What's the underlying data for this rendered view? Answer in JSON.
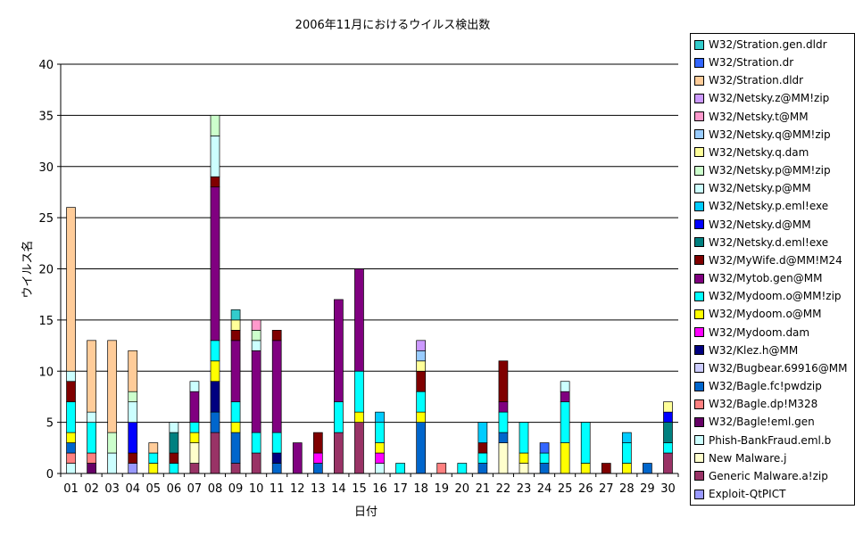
{
  "chart_data": {
    "type": "bar",
    "stacked": true,
    "title": "2006年11月におけるウイルス検出数",
    "xlabel": "日付",
    "ylabel": "ウイルス名",
    "ylim": [
      0,
      40
    ],
    "yticks": [
      0,
      5,
      10,
      15,
      20,
      25,
      30,
      35,
      40
    ],
    "grid": true,
    "legend_position": "right",
    "categories": [
      "01",
      "02",
      "03",
      "04",
      "05",
      "06",
      "07",
      "08",
      "09",
      "10",
      "11",
      "12",
      "13",
      "14",
      "15",
      "16",
      "17",
      "18",
      "19",
      "20",
      "21",
      "22",
      "23",
      "24",
      "25",
      "26",
      "27",
      "28",
      "29",
      "30"
    ],
    "series": [
      {
        "name": "Exploit-QtPICT",
        "color": "#9999ff",
        "values": [
          0,
          0,
          0,
          1,
          0,
          0,
          0,
          0,
          0,
          0,
          0,
          0,
          0,
          0,
          0,
          0,
          0,
          0,
          0,
          0,
          0,
          0,
          0,
          0,
          0,
          0,
          0,
          0,
          0,
          0
        ]
      },
      {
        "name": "Generic Malware.a!zip",
        "color": "#993366",
        "values": [
          0,
          0,
          0,
          0,
          0,
          0,
          1,
          4,
          1,
          2,
          0,
          0,
          0,
          4,
          5,
          0,
          0,
          0,
          0,
          0,
          0,
          0,
          0,
          0,
          0,
          0,
          0,
          0,
          0,
          2
        ]
      },
      {
        "name": "New Malware.j",
        "color": "#ffffcc",
        "values": [
          0,
          0,
          0,
          0,
          0,
          0,
          2,
          0,
          0,
          0,
          0,
          0,
          0,
          0,
          0,
          0,
          0,
          0,
          0,
          0,
          0,
          3,
          1,
          0,
          0,
          0,
          0,
          0,
          0,
          0
        ]
      },
      {
        "name": "Phish-BankFraud.eml.b",
        "color": "#ccffff",
        "values": [
          1,
          0,
          2,
          0,
          0,
          0,
          0,
          0,
          0,
          0,
          0,
          0,
          0,
          0,
          0,
          1,
          0,
          0,
          0,
          0,
          0,
          0,
          0,
          0,
          0,
          0,
          0,
          0,
          0,
          0
        ]
      },
      {
        "name": "W32/Bagle!eml.gen",
        "color": "#660066",
        "values": [
          0,
          1,
          0,
          0,
          0,
          0,
          0,
          0,
          0,
          0,
          0,
          0,
          0,
          0,
          0,
          0,
          0,
          0,
          0,
          0,
          0,
          0,
          0,
          0,
          0,
          0,
          0,
          0,
          0,
          0
        ]
      },
      {
        "name": "W32/Bagle.dp!M328",
        "color": "#ff8080",
        "values": [
          1,
          1,
          0,
          0,
          0,
          0,
          0,
          0,
          0,
          0,
          0,
          0,
          0,
          0,
          0,
          0,
          0,
          0,
          1,
          0,
          0,
          0,
          0,
          0,
          0,
          0,
          0,
          0,
          0,
          0
        ]
      },
      {
        "name": "W32/Bagle.fc!pwdzip",
        "color": "#0066cc",
        "values": [
          1,
          0,
          0,
          0,
          0,
          0,
          0,
          2,
          3,
          0,
          1,
          0,
          1,
          0,
          0,
          0,
          0,
          5,
          0,
          0,
          1,
          1,
          0,
          1,
          0,
          0,
          0,
          0,
          1,
          0
        ]
      },
      {
        "name": "W32/Bugbear.69916@MM",
        "color": "#ccccff",
        "values": [
          0,
          0,
          0,
          0,
          0,
          0,
          0,
          0,
          0,
          0,
          0,
          0,
          0,
          0,
          0,
          0,
          0,
          0,
          0,
          0,
          0,
          0,
          0,
          0,
          0,
          0,
          0,
          0,
          0,
          0
        ]
      },
      {
        "name": "W32/Klez.h@MM",
        "color": "#000080",
        "values": [
          0,
          0,
          0,
          0,
          0,
          0,
          0,
          3,
          0,
          0,
          1,
          0,
          0,
          0,
          0,
          0,
          0,
          0,
          0,
          0,
          0,
          0,
          0,
          0,
          0,
          0,
          0,
          0,
          0,
          0
        ]
      },
      {
        "name": "W32/Mydoom.dam",
        "color": "#ff00ff",
        "values": [
          0,
          0,
          0,
          0,
          0,
          0,
          0,
          0,
          0,
          0,
          0,
          0,
          1,
          0,
          0,
          1,
          0,
          0,
          0,
          0,
          0,
          0,
          0,
          0,
          0,
          0,
          0,
          0,
          0,
          0
        ]
      },
      {
        "name": "W32/Mydoom.o@MM",
        "color": "#ffff00",
        "values": [
          1,
          0,
          0,
          0,
          1,
          0,
          1,
          2,
          1,
          0,
          0,
          0,
          0,
          0,
          1,
          1,
          0,
          1,
          0,
          0,
          0,
          0,
          1,
          0,
          3,
          1,
          0,
          1,
          0,
          0
        ]
      },
      {
        "name": "W32/Mydoom.o@MM!zip",
        "color": "#00ffff",
        "values": [
          3,
          3,
          0,
          0,
          1,
          1,
          1,
          2,
          2,
          2,
          2,
          0,
          0,
          3,
          4,
          2,
          1,
          2,
          0,
          1,
          1,
          2,
          3,
          1,
          4,
          4,
          0,
          2,
          0,
          1
        ]
      },
      {
        "name": "W32/Mytob.gen@MM",
        "color": "#800080",
        "values": [
          0,
          0,
          0,
          0,
          0,
          0,
          3,
          15,
          6,
          8,
          9,
          3,
          0,
          10,
          10,
          0,
          0,
          0,
          0,
          0,
          0,
          1,
          0,
          0,
          1,
          0,
          0,
          0,
          0,
          0
        ]
      },
      {
        "name": "W32/MyWife.d@MM!M24",
        "color": "#800000",
        "values": [
          2,
          0,
          0,
          1,
          0,
          1,
          0,
          1,
          1,
          0,
          1,
          0,
          2,
          0,
          0,
          0,
          0,
          2,
          0,
          0,
          1,
          4,
          0,
          0,
          0,
          0,
          1,
          0,
          0,
          0
        ]
      },
      {
        "name": "W32/Netsky.d.eml!exe",
        "color": "#008080",
        "values": [
          0,
          0,
          0,
          0,
          0,
          2,
          0,
          0,
          0,
          0,
          0,
          0,
          0,
          0,
          0,
          0,
          0,
          0,
          0,
          0,
          0,
          0,
          0,
          0,
          0,
          0,
          0,
          0,
          0,
          2
        ]
      },
      {
        "name": "W32/Netsky.d@MM",
        "color": "#0000ff",
        "values": [
          0,
          0,
          0,
          3,
          0,
          0,
          0,
          0,
          0,
          0,
          0,
          0,
          0,
          0,
          0,
          0,
          0,
          0,
          0,
          0,
          0,
          0,
          0,
          0,
          0,
          0,
          0,
          0,
          0,
          1
        ]
      },
      {
        "name": "W32/Netsky.p.eml!exe",
        "color": "#00ccff",
        "values": [
          0,
          0,
          0,
          0,
          0,
          0,
          0,
          0,
          0,
          0,
          0,
          0,
          0,
          0,
          0,
          1,
          0,
          0,
          0,
          0,
          2,
          0,
          0,
          0,
          0,
          0,
          0,
          1,
          0,
          0
        ]
      },
      {
        "name": "W32/Netsky.p@MM",
        "color": "#ccffff",
        "values": [
          1,
          1,
          0,
          2,
          0,
          1,
          1,
          4,
          0,
          1,
          0,
          0,
          0,
          0,
          0,
          0,
          0,
          0,
          0,
          0,
          0,
          0,
          0,
          0,
          1,
          0,
          0,
          0,
          0,
          0
        ]
      },
      {
        "name": "W32/Netsky.p@MM!zip",
        "color": "#ccffcc",
        "values": [
          0,
          0,
          2,
          1,
          0,
          0,
          0,
          2,
          0,
          1,
          0,
          0,
          0,
          0,
          0,
          0,
          0,
          0,
          0,
          0,
          0,
          0,
          0,
          0,
          0,
          0,
          0,
          0,
          0,
          0
        ]
      },
      {
        "name": "W32/Netsky.q.dam",
        "color": "#ffff99",
        "values": [
          0,
          0,
          0,
          0,
          0,
          0,
          0,
          0,
          1,
          0,
          0,
          0,
          0,
          0,
          0,
          0,
          0,
          1,
          0,
          0,
          0,
          0,
          0,
          0,
          0,
          0,
          0,
          0,
          0,
          1
        ]
      },
      {
        "name": "W32/Netsky.q@MM!zip",
        "color": "#99ccff",
        "values": [
          0,
          0,
          0,
          0,
          0,
          0,
          0,
          0,
          0,
          0,
          0,
          0,
          0,
          0,
          0,
          0,
          0,
          1,
          0,
          0,
          0,
          0,
          0,
          0,
          0,
          0,
          0,
          0,
          0,
          0
        ]
      },
      {
        "name": "W32/Netsky.t@MM",
        "color": "#ff99cc",
        "values": [
          0,
          0,
          0,
          0,
          0,
          0,
          0,
          0,
          0,
          1,
          0,
          0,
          0,
          0,
          0,
          0,
          0,
          0,
          0,
          0,
          0,
          0,
          0,
          0,
          0,
          0,
          0,
          0,
          0,
          0
        ]
      },
      {
        "name": "W32/Netsky.z@MM!zip",
        "color": "#cc99ff",
        "values": [
          0,
          0,
          0,
          0,
          0,
          0,
          0,
          0,
          0,
          0,
          0,
          0,
          0,
          0,
          0,
          0,
          0,
          1,
          0,
          0,
          0,
          0,
          0,
          0,
          0,
          0,
          0,
          0,
          0,
          0
        ]
      },
      {
        "name": "W32/Stration.dldr",
        "color": "#ffcc99",
        "values": [
          16,
          7,
          9,
          4,
          1,
          0,
          0,
          0,
          0,
          0,
          0,
          0,
          0,
          0,
          0,
          0,
          0,
          0,
          0,
          0,
          0,
          0,
          0,
          0,
          0,
          0,
          0,
          0,
          0,
          0
        ]
      },
      {
        "name": "W32/Stration.dr",
        "color": "#3366ff",
        "values": [
          0,
          0,
          0,
          0,
          0,
          0,
          0,
          0,
          0,
          0,
          0,
          0,
          0,
          0,
          0,
          0,
          0,
          0,
          0,
          0,
          0,
          0,
          0,
          1,
          0,
          0,
          0,
          0,
          0,
          0
        ]
      },
      {
        "name": "W32/Stration.gen.dldr",
        "color": "#33cccc",
        "values": [
          0,
          0,
          0,
          0,
          0,
          0,
          0,
          0,
          1,
          0,
          0,
          0,
          0,
          0,
          0,
          0,
          0,
          0,
          0,
          0,
          0,
          0,
          0,
          0,
          0,
          0,
          0,
          0,
          0,
          0
        ]
      }
    ]
  }
}
